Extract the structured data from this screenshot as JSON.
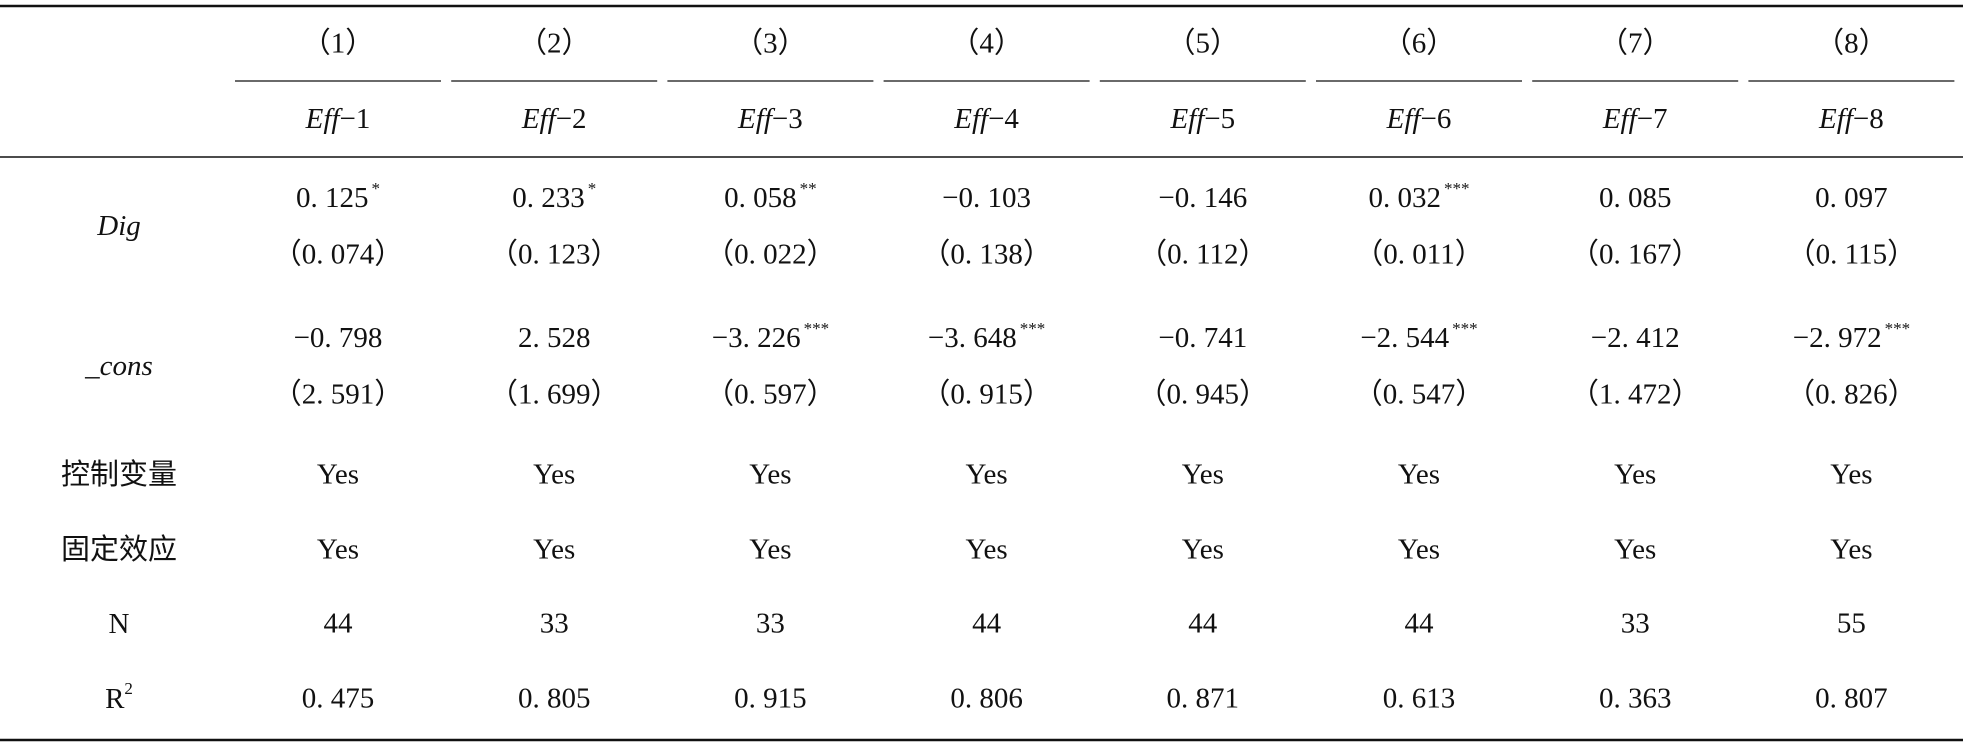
{
  "table": {
    "column_numbers": [
      "（1）",
      "（2）",
      "（3）",
      "（4）",
      "（5）",
      "（6）",
      "（7）",
      "（8）"
    ],
    "column_names": [
      {
        "italic": "Eff",
        "suffix": "−1"
      },
      {
        "italic": "Eff",
        "suffix": "−2"
      },
      {
        "italic": "Eff",
        "suffix": "−3"
      },
      {
        "italic": "Eff",
        "suffix": "−4"
      },
      {
        "italic": "Eff",
        "suffix": "−5"
      },
      {
        "italic": "Eff",
        "suffix": "−6"
      },
      {
        "italic": "Eff",
        "suffix": "−7"
      },
      {
        "italic": "Eff",
        "suffix": "−8"
      }
    ],
    "coef_rows": [
      {
        "label": "Dig",
        "cells": [
          {
            "coef": "0. 125",
            "stars": "*",
            "se": "（0. 074）"
          },
          {
            "coef": "0. 233",
            "stars": "*",
            "se": "（0. 123）"
          },
          {
            "coef": "0. 058",
            "stars": "**",
            "se": "（0. 022）"
          },
          {
            "coef": "−0. 103",
            "se": "（0. 138）"
          },
          {
            "coef": "−0. 146",
            "se": "（0. 112）"
          },
          {
            "coef": "0. 032",
            "stars": "***",
            "se": "（0. 011）"
          },
          {
            "coef": "0. 085",
            "se": "（0. 167）"
          },
          {
            "coef": "0. 097",
            "se": "（0. 115）"
          }
        ]
      },
      {
        "label": "_cons",
        "cells": [
          {
            "coef": "−0. 798",
            "se": "（2. 591）"
          },
          {
            "coef": "2. 528",
            "se": "（1. 699）"
          },
          {
            "coef": "−3. 226",
            "stars": "***",
            "se": "（0. 597）"
          },
          {
            "coef": "−3. 648",
            "stars": "***",
            "se": "（0. 915）"
          },
          {
            "coef": "−0. 741",
            "se": "（0. 945）"
          },
          {
            "coef": "−2. 544",
            "stars": "***",
            "se": "（0. 547）"
          },
          {
            "coef": "−2. 412",
            "se": "（1. 472）"
          },
          {
            "coef": "−2. 972",
            "stars": "***",
            "se": "（0. 826）"
          }
        ]
      }
    ],
    "simple_rows": [
      {
        "label": "控制变量",
        "cells": [
          "Yes",
          "Yes",
          "Yes",
          "Yes",
          "Yes",
          "Yes",
          "Yes",
          "Yes"
        ]
      },
      {
        "label": "固定效应",
        "cells": [
          "Yes",
          "Yes",
          "Yes",
          "Yes",
          "Yes",
          "Yes",
          "Yes",
          "Yes"
        ]
      },
      {
        "label": "N",
        "cells": [
          44,
          33,
          33,
          44,
          44,
          44,
          33,
          55
        ]
      },
      {
        "label": "R",
        "label_sup": "2",
        "cells": [
          "0. 475",
          "0. 805",
          "0. 915",
          "0. 806",
          "0. 871",
          "0. 613",
          "0. 363",
          "0. 807"
        ]
      }
    ]
  }
}
